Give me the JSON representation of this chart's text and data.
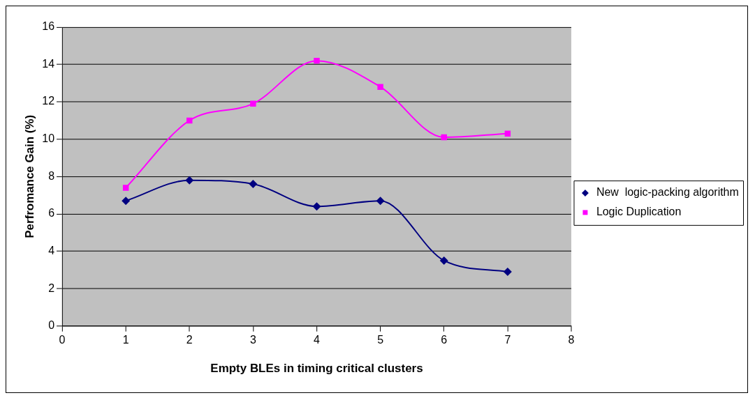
{
  "chart_data": {
    "type": "line",
    "xlabel": "Empty BLEs in timing critical clusters",
    "ylabel": "Perfromance Gain (%)",
    "x": [
      1,
      2,
      3,
      4,
      5,
      6,
      7
    ],
    "series": [
      {
        "name": "New  logic-packing algorithm",
        "color": "#000080",
        "marker": "diamond",
        "values": [
          6.7,
          7.8,
          7.6,
          6.4,
          6.7,
          3.5,
          2.9
        ]
      },
      {
        "name": "Logic Duplication",
        "color": "#ff00ff",
        "marker": "square",
        "values": [
          7.4,
          11.0,
          11.9,
          14.2,
          12.8,
          10.1,
          10.3
        ]
      }
    ],
    "xlim": [
      0,
      8
    ],
    "xticks": [
      0,
      1,
      2,
      3,
      4,
      5,
      6,
      7,
      8
    ],
    "ylim": [
      0,
      16
    ],
    "yticks": [
      0,
      2,
      4,
      6,
      8,
      10,
      12,
      14,
      16
    ],
    "grid": "y",
    "legend": "right"
  }
}
